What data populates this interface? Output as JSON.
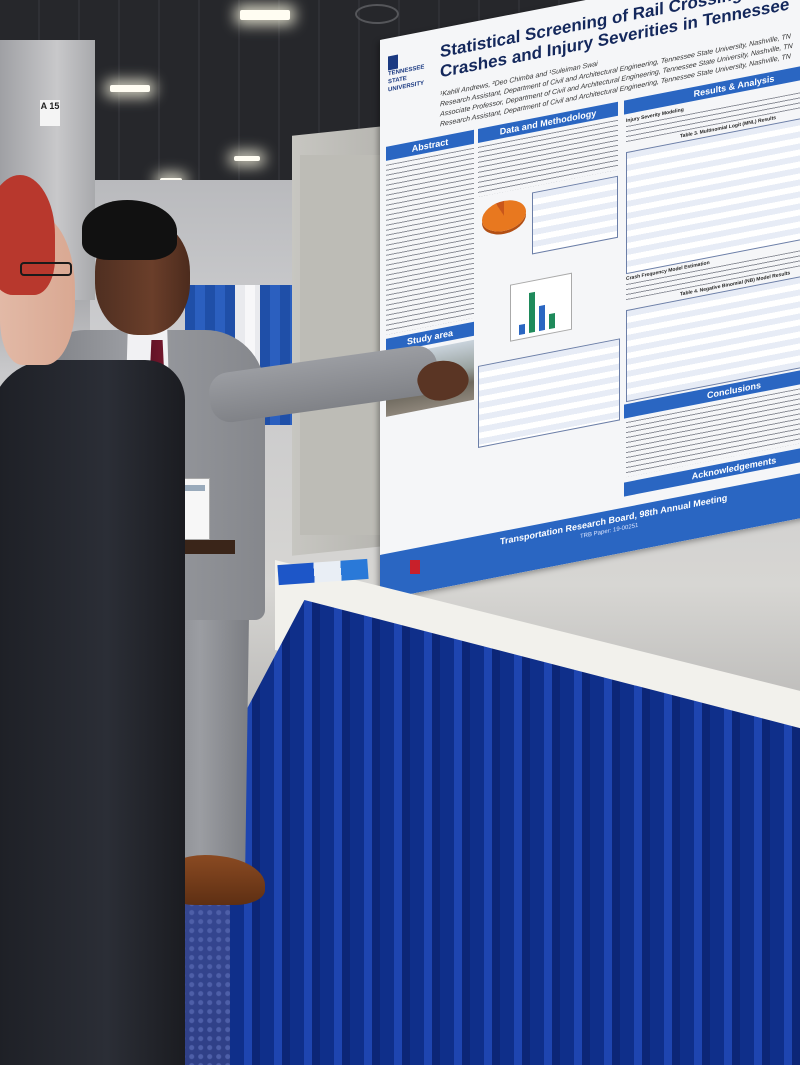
{
  "scene": {
    "pillar_sign": "A 15"
  },
  "poster": {
    "logo_text": "TENNESSEE STATE UNIVERSITY",
    "title": "Statistical Screening of Rail Crossing Related Crashes and Injury Severities in Tennessee",
    "authors": [
      "¹Kahlil Andrews, ²Deo Chimba and ¹Suleiman Swai",
      "Research Assistant, Department of Civil and Architectural Engineering, Tennessee State University, Nashville, TN",
      "Associate Professor, Department of Civil and Architectural Engineering, Tennessee State University, Nashville, TN",
      "Research Assistant, Department of Civil and Architectural Engineering, Tennessee State University, Nashville, TN"
    ],
    "sections": {
      "abstract": "Abstract",
      "data_methodology": "Data and Methodology",
      "study_area": "Study area",
      "results": "Results & Analysis",
      "conclusions": "Conclusions",
      "acknowledgements": "Acknowledgements"
    },
    "subheads": {
      "injury_model": "Injury Severity Modeling",
      "mnl_table": "Table 3. Multinomial Logit (MNL) Results",
      "crash_freq": "Crash Frequency Model Estimation",
      "nb_table": "Table 4. Negative Binomial (NB) Model Results"
    },
    "footer": "Transportation Research Board, 98th Annual Meeting",
    "footer_sub": "TRB Paper: 19-00251"
  },
  "colors": {
    "poster_blue": "#2a66c2",
    "skirt_blue": "#1e45b0",
    "title_navy": "#14285c"
  }
}
